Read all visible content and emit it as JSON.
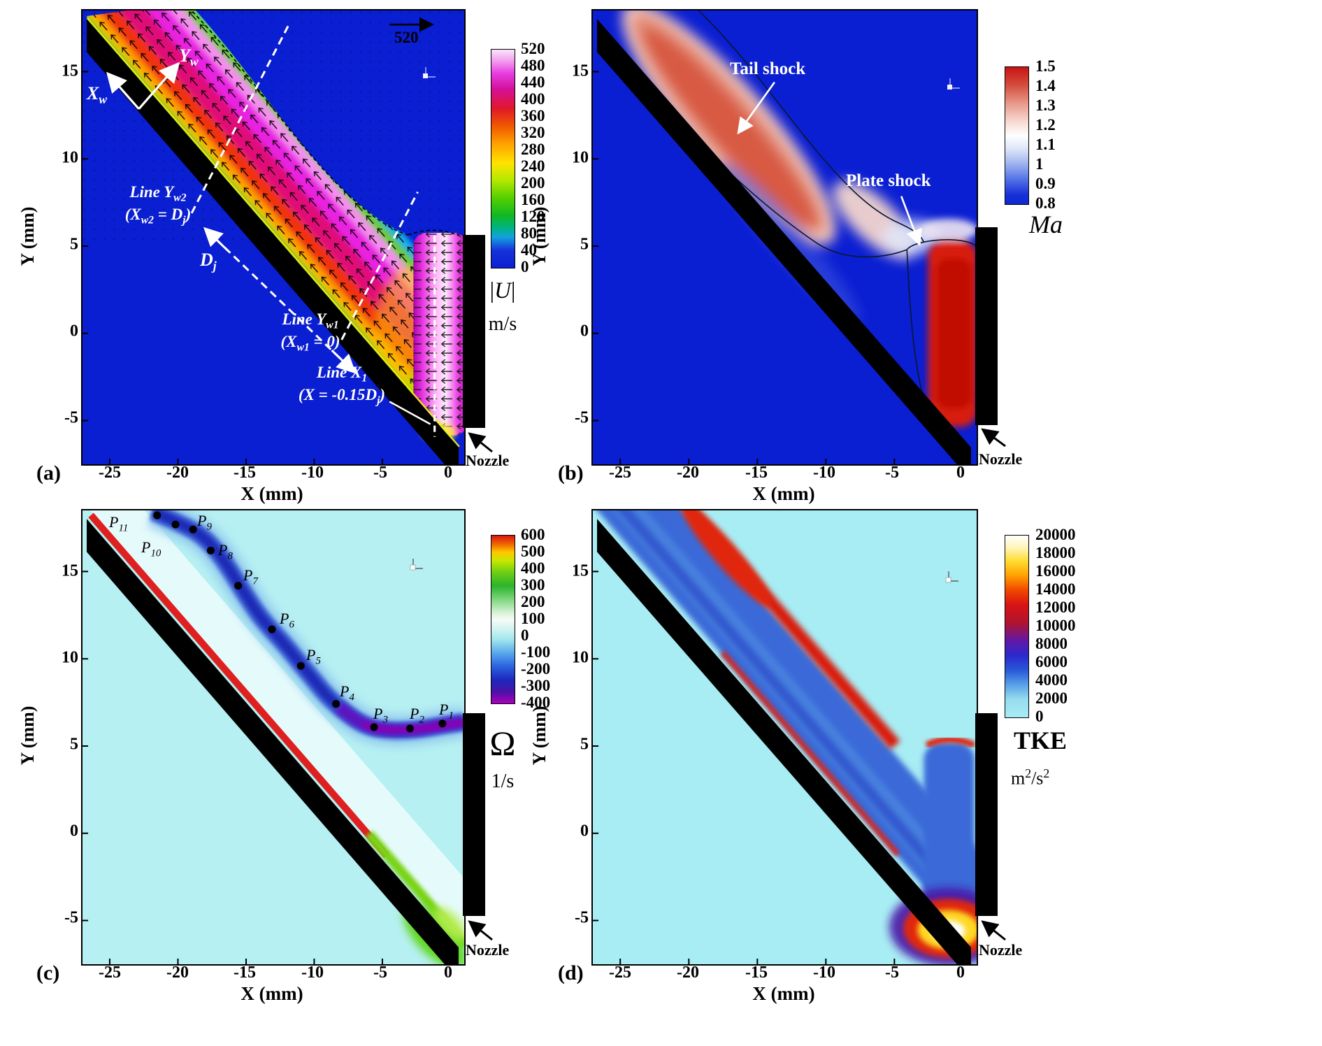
{
  "figure": {
    "panels": {
      "a": {
        "letter": "(a)",
        "xlabel": "X (mm)",
        "ylabel": "Y (mm)",
        "x_ticks": [
          "-25",
          "-20",
          "-15",
          "-10",
          "-5",
          "0"
        ],
        "y_ticks": [
          "15",
          "10",
          "5",
          "0",
          "-5"
        ],
        "colorbar_ticks": [
          "520",
          "480",
          "440",
          "400",
          "360",
          "320",
          "280",
          "240",
          "200",
          "160",
          "120",
          "80",
          "40",
          "0"
        ],
        "quantity_html": "|<i>U</i>|",
        "units_html": "m/s",
        "nozzle_label": "Nozzle",
        "ref_vector_label": "520",
        "annotations": {
          "xw_html": "<i>X<sub>w</sub></i>",
          "yw_html": "<i>Y<sub>w</sub></i>",
          "line_yw2_html": "Line <i>Y<sub>w2</sub></i><br>(<i>X<sub>w2</sub></i> = <i>D<sub>j</sub></i>)",
          "dj_html": "<i>D<sub>j</sub></i>",
          "line_yw1_html": "Line <i>Y<sub>w1</sub></i><br>(<i>X<sub>w1</sub></i> = 0)",
          "line_x1_html": "Line <i>X<sub>1</sub></i><br>(<i>X</i> = -0.15<i>D<sub>j</sub></i>)"
        }
      },
      "b": {
        "letter": "(b)",
        "xlabel": "X (mm)",
        "ylabel": "Y (mm)",
        "x_ticks": [
          "-25",
          "-20",
          "-15",
          "-10",
          "-5",
          "0"
        ],
        "y_ticks": [
          "15",
          "10",
          "5",
          "0",
          "-5"
        ],
        "colorbar_ticks": [
          "1.5",
          "1.4",
          "1.3",
          "1.2",
          "1.1",
          "1",
          "0.9",
          "0.8"
        ],
        "quantity_html": "<i>Ma</i>",
        "nozzle_label": "Nozzle",
        "annotations": {
          "tail_shock": "Tail shock",
          "plate_shock": "Plate shock"
        }
      },
      "c": {
        "letter": "(c)",
        "xlabel": "X (mm)",
        "ylabel": "Y (mm)",
        "x_ticks": [
          "-25",
          "-20",
          "-15",
          "-10",
          "-5",
          "0"
        ],
        "y_ticks": [
          "15",
          "10",
          "5",
          "0",
          "-5"
        ],
        "colorbar_ticks": [
          "600",
          "500",
          "400",
          "300",
          "200",
          "100",
          "0",
          "-100",
          "-200",
          "-300",
          "-400"
        ],
        "quantity_html": "&#937;",
        "units_html": "1/s",
        "nozzle_label": "Nozzle",
        "point_labels": [
          "<i>P</i><sub>1</sub>",
          "<i>P</i><sub>2</sub>",
          "<i>P</i><sub>3</sub>",
          "<i>P</i><sub>4</sub>",
          "<i>P</i><sub>5</sub>",
          "<i>P</i><sub>6</sub>",
          "<i>P</i><sub>7</sub>",
          "<i>P</i><sub>8</sub>",
          "<i>P</i><sub>9</sub>",
          "<i>P</i><sub>10</sub>",
          "<i>P</i><sub>11</sub>"
        ]
      },
      "d": {
        "letter": "(d)",
        "xlabel": "X (mm)",
        "ylabel": "Y (mm)",
        "x_ticks": [
          "-25",
          "-20",
          "-15",
          "-10",
          "-5",
          "0"
        ],
        "y_ticks": [
          "15",
          "10",
          "5",
          "0",
          "-5"
        ],
        "colorbar_ticks": [
          "20000",
          "18000",
          "16000",
          "14000",
          "12000",
          "10000",
          "8000",
          "6000",
          "4000",
          "2000",
          "0"
        ],
        "quantity_html": "TKE",
        "units_html": "m<sup>2</sup>/s<sup>2</sup>",
        "nozzle_label": "Nozzle"
      }
    }
  },
  "colors": {
    "field_background_ab": "#0a1ed2",
    "field_background_cd": "#b6f0f2",
    "plate": "#000000",
    "annotation_text": "#ffffff",
    "shock_red": "#d81c10"
  },
  "chart_data": [
    {
      "panel": "(a)",
      "type": "heatmap",
      "field": "velocity magnitude |U| (m/s) with velocity vectors",
      "xlabel": "X (mm)",
      "ylabel": "Y (mm)",
      "xlim": [
        -27,
        1
      ],
      "ylim": [
        -7.5,
        18.5
      ],
      "x_ticks": [
        -25,
        -20,
        -15,
        -10,
        -5,
        0
      ],
      "y_ticks": [
        15,
        10,
        5,
        0,
        -5
      ],
      "colorbar": {
        "label": "|U| m/s",
        "min": 0,
        "max": 520,
        "ticks": [
          520,
          480,
          440,
          400,
          360,
          320,
          280,
          240,
          200,
          160,
          120,
          80,
          40,
          0
        ]
      },
      "reference_vector_m_per_s": 520,
      "annotations": [
        "X_w",
        "Y_w",
        "Line Y_w2 (X_w2 = D_j)",
        "D_j",
        "Line Y_w1 (X_w1 = 0)",
        "Line X_1 (X = -0.15D_j)",
        "Nozzle"
      ],
      "description": "Jet from nozzle at right impinges on inclined plate running from about (-26,18) to (0,-7); wall jet flows along the plate toward upper left; dashed white measurement lines Y_w1, Y_w2, X_1 and plate-parallel distance D_j shown."
    },
    {
      "panel": "(b)",
      "type": "heatmap",
      "field": "Mach number Ma",
      "xlabel": "X (mm)",
      "ylabel": "Y (mm)",
      "xlim": [
        -27,
        1
      ],
      "ylim": [
        -7.5,
        18.5
      ],
      "x_ticks": [
        -25,
        -20,
        -15,
        -10,
        -5,
        0
      ],
      "y_ticks": [
        15,
        10,
        5,
        0,
        -5
      ],
      "colorbar": {
        "label": "Ma",
        "min": 0.8,
        "max": 1.5,
        "ticks": [
          1.5,
          1.4,
          1.3,
          1.2,
          1.1,
          1,
          0.9,
          0.8
        ]
      },
      "annotations": [
        "Tail shock",
        "Plate shock",
        "Nozzle"
      ],
      "description": "Supersonic (red, Ma>1) tail-shock region stretched along the plate from about (-25,17) to (-9,7) and a plate-shock region at the jet column near X = -2 to 0, Y = -5 to 5; sonic-line contours drawn in black."
    },
    {
      "panel": "(c)",
      "type": "heatmap",
      "field": "vorticity Omega (1/s)",
      "xlabel": "X (mm)",
      "ylabel": "Y (mm)",
      "xlim": [
        -27,
        1
      ],
      "ylim": [
        -7.5,
        18.5
      ],
      "x_ticks": [
        -25,
        -20,
        -15,
        -10,
        -5,
        0
      ],
      "y_ticks": [
        15,
        10,
        5,
        0,
        -5
      ],
      "colorbar": {
        "label": "Omega 1/s",
        "min": -400,
        "max": 600,
        "ticks": [
          600,
          500,
          400,
          300,
          200,
          100,
          0,
          -100,
          -200,
          -300,
          -400
        ]
      },
      "points": [
        {
          "name": "P1",
          "x": -0.6,
          "y": 6.3
        },
        {
          "name": "P2",
          "x": -3.0,
          "y": 6.0
        },
        {
          "name": "P3",
          "x": -5.6,
          "y": 6.1
        },
        {
          "name": "P4",
          "x": -8.4,
          "y": 7.4
        },
        {
          "name": "P5",
          "x": -11.0,
          "y": 9.6
        },
        {
          "name": "P6",
          "x": -13.1,
          "y": 11.7
        },
        {
          "name": "P7",
          "x": -15.6,
          "y": 14.2
        },
        {
          "name": "P8",
          "x": -17.6,
          "y": 16.2
        },
        {
          "name": "P9",
          "x": -18.9,
          "y": 17.4
        },
        {
          "name": "P10",
          "x": -20.2,
          "y": 17.7
        },
        {
          "name": "P11",
          "x": -21.5,
          "y": 18.2
        }
      ],
      "annotations": [
        "Nozzle"
      ],
      "description": "Positive vorticity (red) sheet on the plate surface, negative vorticity (blue/purple) outer shear layer marked by probe points P1-P11."
    },
    {
      "panel": "(d)",
      "type": "heatmap",
      "field": "turbulent kinetic energy TKE (m^2/s^2)",
      "xlabel": "X (mm)",
      "ylabel": "Y (mm)",
      "xlim": [
        -27,
        1
      ],
      "ylim": [
        -7.5,
        18.5
      ],
      "x_ticks": [
        -25,
        -20,
        -15,
        -10,
        -5,
        0
      ],
      "y_ticks": [
        15,
        10,
        5,
        0,
        -5
      ],
      "colorbar": {
        "label": "TKE m^2/s^2",
        "min": 0,
        "max": 20000,
        "ticks": [
          20000,
          18000,
          16000,
          14000,
          12000,
          10000,
          8000,
          6000,
          4000,
          2000,
          0
        ]
      },
      "annotations": [
        "Nozzle"
      ],
      "description": "Moderate TKE (blue) band along the wall jet bounded by high-TKE (red) shear layers; very high TKE (yellow/white) pocket near the impingement point around (-2,-5)."
    }
  ]
}
